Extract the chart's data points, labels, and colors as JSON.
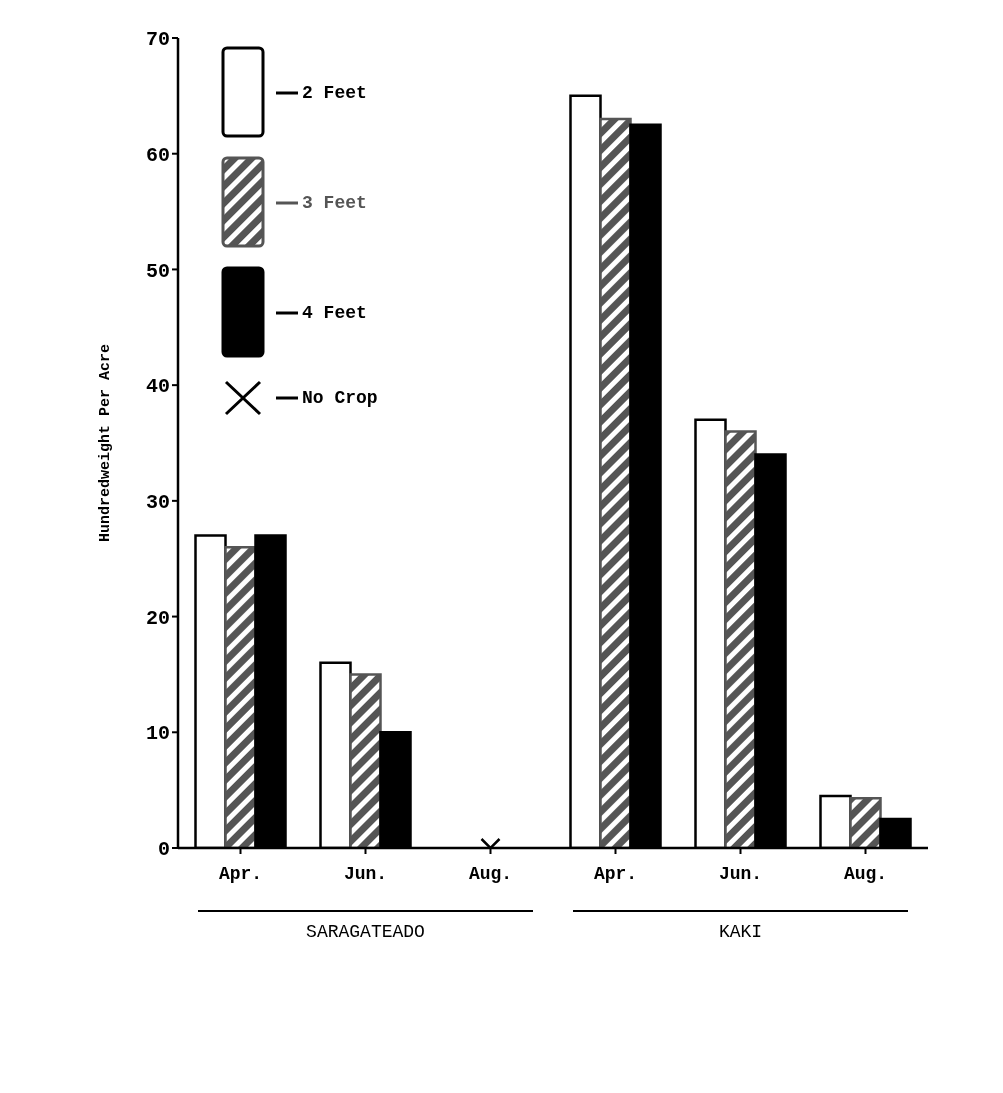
{
  "chart_data": {
    "type": "bar",
    "ylabel": "Hundredweight  Per Acre",
    "categories": [
      "Apr.",
      "Jun.",
      "Aug.",
      "Apr.",
      "Jun.",
      "Aug."
    ],
    "series": [
      {
        "name": "2 Feet",
        "color": "#ffffff",
        "values": [
          27,
          16,
          null,
          65,
          37,
          4.5
        ]
      },
      {
        "name": "3 Feet",
        "color": "#555555",
        "values": [
          26,
          15,
          null,
          63,
          36,
          4.3
        ]
      },
      {
        "name": "4 Feet",
        "color": "#000000",
        "values": [
          27,
          10,
          null,
          62.5,
          34,
          2.5
        ]
      },
      {
        "name": "No Crop",
        "type": "scatter",
        "marker": "cross",
        "color": "#000000",
        "values": [
          null,
          null,
          0,
          null,
          null,
          null
        ]
      }
    ],
    "annotations": [
      "SARAGATEADO",
      "KAKI"
    ],
    "ylim": [
      0,
      70
    ],
    "yticks": [
      0,
      10,
      20,
      30,
      40,
      50,
      60,
      70
    ],
    "grid": false,
    "legend": "top left"
  }
}
